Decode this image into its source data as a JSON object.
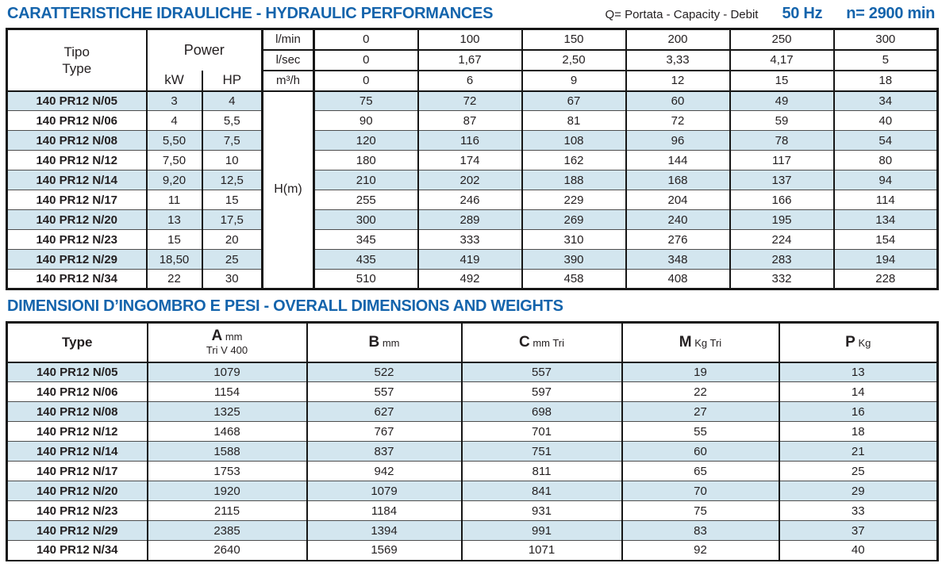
{
  "page": {
    "section1_title": "CARATTERISTICHE IDRAULICHE - HYDRAULIC PERFORMANCES",
    "flow_legend": "Q= Portata - Capacity - Debit",
    "frequency": "50 Hz",
    "speed": "n= 2900 min",
    "section2_title": "DIMENSIONI D’INGOMBRO E PESI - OVERALL DIMENSIONS AND WEIGHTS"
  },
  "colors": {
    "accent_blue": "#1464ac",
    "row_highlight_blue": "#d3e6ef",
    "text_dark": "#231f20"
  },
  "hydraulic_table": {
    "type_header_line1": "Tipo",
    "type_header_line2": "Type",
    "power_header": "Power",
    "kw_header": "kW",
    "hp_header": "HP",
    "head_label": "H(m)",
    "flow_rows": [
      {
        "unit": "l/min",
        "values": [
          "0",
          "100",
          "150",
          "200",
          "250",
          "300"
        ]
      },
      {
        "unit": "l/sec",
        "values": [
          "0",
          "1,67",
          "2,50",
          "3,33",
          "4,17",
          "5"
        ]
      },
      {
        "unit": "m³/h",
        "values": [
          "0",
          "6",
          "9",
          "12",
          "15",
          "18"
        ]
      }
    ],
    "rows": [
      {
        "type": "140 PR12 N/05",
        "kw": "3",
        "hp": "4",
        "h": [
          "75",
          "72",
          "67",
          "60",
          "49",
          "34"
        ]
      },
      {
        "type": "140 PR12 N/06",
        "kw": "4",
        "hp": "5,5",
        "h": [
          "90",
          "87",
          "81",
          "72",
          "59",
          "40"
        ]
      },
      {
        "type": "140 PR12 N/08",
        "kw": "5,50",
        "hp": "7,5",
        "h": [
          "120",
          "116",
          "108",
          "96",
          "78",
          "54"
        ]
      },
      {
        "type": "140 PR12 N/12",
        "kw": "7,50",
        "hp": "10",
        "h": [
          "180",
          "174",
          "162",
          "144",
          "117",
          "80"
        ]
      },
      {
        "type": "140 PR12 N/14",
        "kw": "9,20",
        "hp": "12,5",
        "h": [
          "210",
          "202",
          "188",
          "168",
          "137",
          "94"
        ]
      },
      {
        "type": "140 PR12 N/17",
        "kw": "11",
        "hp": "15",
        "h": [
          "255",
          "246",
          "229",
          "204",
          "166",
          "114"
        ]
      },
      {
        "type": "140 PR12 N/20",
        "kw": "13",
        "hp": "17,5",
        "h": [
          "300",
          "289",
          "269",
          "240",
          "195",
          "134"
        ]
      },
      {
        "type": "140 PR12 N/23",
        "kw": "15",
        "hp": "20",
        "h": [
          "345",
          "333",
          "310",
          "276",
          "224",
          "154"
        ]
      },
      {
        "type": "140 PR12 N/29",
        "kw": "18,50",
        "hp": "25",
        "h": [
          "435",
          "419",
          "390",
          "348",
          "283",
          "194"
        ]
      },
      {
        "type": "140 PR12 N/34",
        "kw": "22",
        "hp": "30",
        "h": [
          "510",
          "492",
          "458",
          "408",
          "332",
          "228"
        ]
      }
    ]
  },
  "dimensions_table": {
    "columns": [
      {
        "label": "Type",
        "unit": "",
        "sub": ""
      },
      {
        "label": "A",
        "unit": "mm",
        "sub": "Tri V 400"
      },
      {
        "label": "B",
        "unit": "mm",
        "sub": ""
      },
      {
        "label": "C",
        "unit": "mm Tri",
        "sub": ""
      },
      {
        "label": "M",
        "unit": "Kg Tri",
        "sub": ""
      },
      {
        "label": "P",
        "unit": "Kg",
        "sub": ""
      }
    ],
    "rows": [
      {
        "type": "140 PR12 N/05",
        "a": "1079",
        "b": "522",
        "c": "557",
        "m": "19",
        "p": "13"
      },
      {
        "type": "140 PR12 N/06",
        "a": "1154",
        "b": "557",
        "c": "597",
        "m": "22",
        "p": "14"
      },
      {
        "type": "140 PR12 N/08",
        "a": "1325",
        "b": "627",
        "c": "698",
        "m": "27",
        "p": "16"
      },
      {
        "type": "140 PR12 N/12",
        "a": "1468",
        "b": "767",
        "c": "701",
        "m": "55",
        "p": "18"
      },
      {
        "type": "140 PR12 N/14",
        "a": "1588",
        "b": "837",
        "c": "751",
        "m": "60",
        "p": "21"
      },
      {
        "type": "140 PR12 N/17",
        "a": "1753",
        "b": "942",
        "c": "811",
        "m": "65",
        "p": "25"
      },
      {
        "type": "140 PR12 N/20",
        "a": "1920",
        "b": "1079",
        "c": "841",
        "m": "70",
        "p": "29"
      },
      {
        "type": "140 PR12 N/23",
        "a": "2115",
        "b": "1184",
        "c": "931",
        "m": "75",
        "p": "33"
      },
      {
        "type": "140 PR12 N/29",
        "a": "2385",
        "b": "1394",
        "c": "991",
        "m": "83",
        "p": "37"
      },
      {
        "type": "140 PR12 N/34",
        "a": "2640",
        "b": "1569",
        "c": "1071",
        "m": "92",
        "p": "40"
      }
    ]
  }
}
